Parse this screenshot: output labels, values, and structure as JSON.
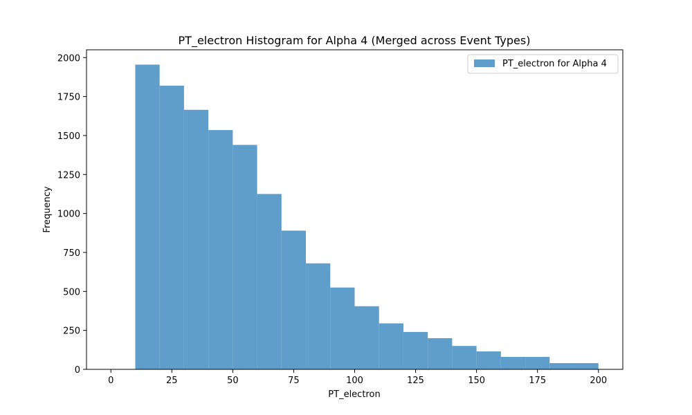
{
  "chart_data": {
    "type": "bar",
    "title": "PT_electron Histogram for Alpha 4 (Merged across Event Types)",
    "xlabel": "PT_electron",
    "ylabel": "Frequency",
    "xlim": [
      -10,
      210
    ],
    "ylim": [
      0,
      2050
    ],
    "xticks": [
      0,
      25,
      50,
      75,
      100,
      125,
      150,
      175,
      200
    ],
    "yticks": [
      0,
      250,
      500,
      750,
      1000,
      1250,
      1500,
      1750,
      2000
    ],
    "legend": "top-right",
    "grid": false,
    "color": "#5f9ecb",
    "series": [
      {
        "name": "PT_electron for Alpha 4",
        "bin_edges": [
          10,
          20,
          30,
          40,
          50,
          60,
          70,
          80,
          90,
          100,
          110,
          120,
          130,
          140,
          150,
          160,
          170,
          180,
          190,
          200
        ],
        "values": [
          1955,
          1820,
          1665,
          1535,
          1440,
          1125,
          890,
          680,
          525,
          405,
          295,
          240,
          200,
          150,
          115,
          80,
          80,
          40,
          40
        ]
      }
    ]
  }
}
